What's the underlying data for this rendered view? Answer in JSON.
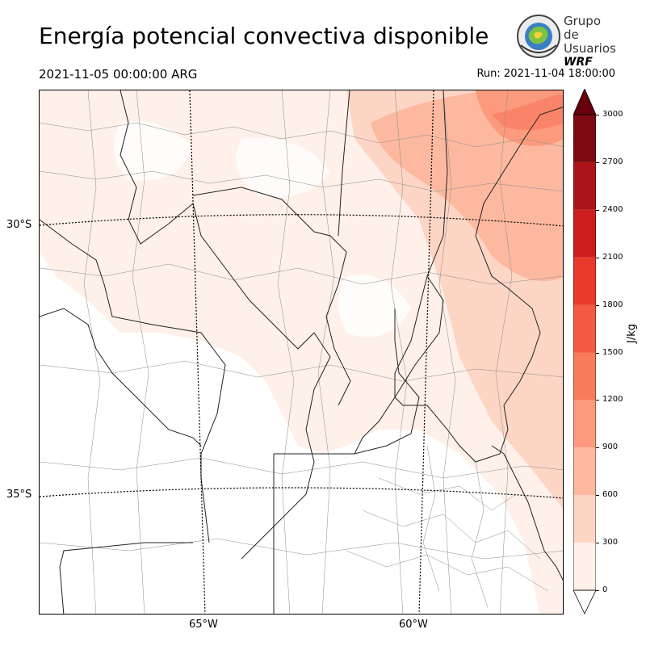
{
  "header": {
    "title": "Energía potencial convectiva disponible",
    "valid_time": "2021-11-05 00:00:00 ARG",
    "run_time": "Run: 2021-11-04 18:00:00"
  },
  "logo": {
    "line1": "Grupo de",
    "line2": "Usuarios",
    "line3": "WRF"
  },
  "map": {
    "lat_labels": [
      "30°S",
      "35°S"
    ],
    "lon_labels": [
      "65°W",
      "60°W"
    ]
  },
  "colorbar": {
    "label": "J/kg",
    "ticks": [
      "0",
      "300",
      "600",
      "900",
      "1200",
      "1500",
      "1800",
      "2100",
      "2400",
      "2700",
      "3000"
    ],
    "colors": [
      "#fff0ea",
      "#fdd5c4",
      "#fcb99f",
      "#fc9a7d",
      "#f87b5e",
      "#f45a41",
      "#e8392b",
      "#cd1d1e",
      "#ad1419",
      "#7d0a12"
    ],
    "extend_top_color": "#67000d"
  }
}
